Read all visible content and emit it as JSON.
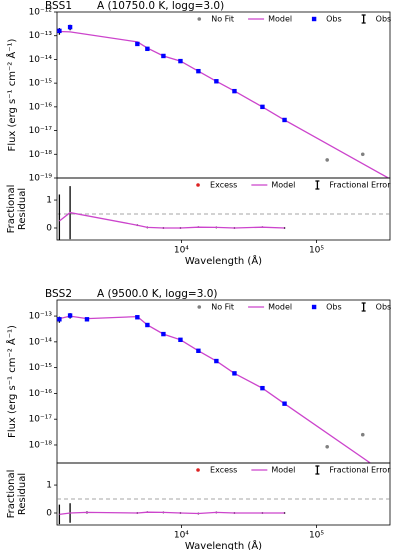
{
  "chart_data": [
    {
      "type": "sed",
      "title": "BSS1",
      "subtitle": "A (10750.0 K, logg=3.0)",
      "ylabel": "Flux (erg s⁻¹ cm⁻² Å⁻¹)",
      "xscale": "log",
      "yscale": "log",
      "xlim": [
        1200,
        350000
      ],
      "ylim": [
        1e-19,
        1e-12
      ],
      "yticks": [
        {
          "value": 1e-12,
          "label": "10⁻¹²"
        },
        {
          "value": 1e-13,
          "label": "10⁻¹³"
        },
        {
          "value": 1e-14,
          "label": "10⁻¹⁴"
        },
        {
          "value": 1e-15,
          "label": "10⁻¹⁵"
        },
        {
          "value": 1e-16,
          "label": "10⁻¹⁶"
        },
        {
          "value": 1e-17,
          "label": "10⁻¹⁷"
        },
        {
          "value": 1e-18,
          "label": "10⁻¹⁸"
        },
        {
          "value": 1e-19,
          "label": "10⁻¹⁹"
        }
      ],
      "legend": "upper right",
      "series": [
        {
          "name": "No Fit",
          "kind": "scatter",
          "color": "#808080",
          "x": [
            120000,
            220000
          ],
          "values": [
            5.8e-19,
            1e-18
          ]
        },
        {
          "name": "Model",
          "kind": "line",
          "color": "#cc44cc",
          "x": [
            1200,
            1250,
            1500,
            4720,
            5600,
            7360,
            9840,
            13360,
            18150,
            24700,
            39800,
            58000,
            340000
          ],
          "values": [
            1.5e-13,
            1.5e-13,
            1.45e-13,
            5.5e-14,
            3e-14,
            1.4e-14,
            8.5e-15,
            3.2e-15,
            1.2e-15,
            4.6e-16,
            1e-16,
            2.8e-17,
            1e-19
          ]
        },
        {
          "name": "Obs",
          "kind": "square",
          "color": "#0000ff",
          "x": [
            1250,
            1500,
            4720,
            5600,
            7360,
            9840,
            13360,
            18150,
            24700,
            39800,
            58000
          ],
          "values": [
            1.6e-13,
            2.3e-13,
            4.5e-14,
            2.8e-14,
            1.4e-14,
            8.5e-15,
            3.2e-15,
            1.2e-15,
            4.6e-16,
            1e-16,
            2.8e-17
          ],
          "errors": [
            5e-14,
            6e-14,
            2e-15,
            1e-15,
            4e-16,
            3e-16,
            1e-16,
            4e-17,
            1.5e-17,
            3e-18,
            1e-18
          ],
          "error_label": "Obs",
          "error_color": "#000000"
        }
      ]
    },
    {
      "type": "residual",
      "ylabel": [
        "Fractional",
        "Residual"
      ],
      "xlabel": "Wavelength (Å)",
      "xscale": "log",
      "yscale": "linear",
      "xlim": [
        1200,
        350000
      ],
      "ylim": [
        -0.43,
        1.79
      ],
      "yticks": [
        0,
        1
      ],
      "xticks": [
        {
          "value": 10000,
          "label": "10⁴"
        },
        {
          "value": 100000,
          "label": "10⁵"
        }
      ],
      "reference_line": 0.5,
      "legend": "upper right",
      "series": [
        {
          "name": "Excess",
          "kind": "scatter",
          "color": "#dd2222",
          "x": [],
          "values": []
        },
        {
          "name": "Model",
          "kind": "line",
          "color": "#cc44cc",
          "x": [
            1250,
            1500,
            4720,
            5600,
            7360,
            9840,
            13360,
            18150,
            24700,
            39800,
            58000
          ],
          "values": [
            0.25,
            0.55,
            0.1,
            0.02,
            0.0,
            0.0,
            0.03,
            0.02,
            0.0,
            0.03,
            0.0
          ],
          "errors": [
            0.95,
            0.95,
            0.03,
            0.03,
            0.03,
            0.03,
            0.03,
            0.03,
            0.03,
            0.03,
            0.03
          ],
          "error_label": "Fractional Error",
          "error_color": "#000000"
        }
      ]
    },
    {
      "type": "sed",
      "title": "BSS2",
      "subtitle": "A (9500.0 K, logg=3.0)",
      "ylabel": "Flux (erg s⁻¹ cm⁻² Å⁻¹)",
      "xscale": "log",
      "yscale": "log",
      "xlim": [
        1200,
        350000
      ],
      "ylim": [
        2e-19,
        4.2e-13
      ],
      "yticks": [
        {
          "value": 1e-13,
          "label": "10⁻¹³"
        },
        {
          "value": 1e-14,
          "label": "10⁻¹⁴"
        },
        {
          "value": 1e-15,
          "label": "10⁻¹⁵"
        },
        {
          "value": 1e-16,
          "label": "10⁻¹⁶"
        },
        {
          "value": 1e-17,
          "label": "10⁻¹⁷"
        },
        {
          "value": 1e-18,
          "label": "10⁻¹⁸"
        }
      ],
      "legend": "upper right",
      "series": [
        {
          "name": "No Fit",
          "kind": "scatter",
          "color": "#808080",
          "x": [
            120000,
            220000
          ],
          "values": [
            8.5e-19,
            2.5e-18
          ]
        },
        {
          "name": "Model",
          "kind": "line",
          "color": "#cc44cc",
          "x": [
            1200,
            1250,
            1500,
            2000,
            4720,
            5600,
            7360,
            9840,
            13360,
            18150,
            24700,
            39800,
            58000,
            250000
          ],
          "values": [
            8e-14,
            8e-14,
            1e-13,
            8e-14,
            9.5e-14,
            4.5e-14,
            2e-14,
            1.2e-14,
            4.5e-15,
            1.8e-15,
            6e-16,
            1.6e-16,
            4e-17,
            2e-19
          ]
        },
        {
          "name": "Obs",
          "kind": "square",
          "color": "#0000ff",
          "x": [
            1250,
            1500,
            2000,
            4720,
            5600,
            7360,
            9840,
            13360,
            18150,
            24700,
            39800,
            58000
          ],
          "values": [
            7.5e-14,
            1.05e-13,
            7.5e-14,
            9e-14,
            4.5e-14,
            2e-14,
            1.2e-14,
            4.5e-15,
            1.8e-15,
            6e-16,
            1.6e-16,
            4e-17
          ],
          "errors": [
            2e-14,
            2.5e-14,
            5e-15,
            4e-15,
            2e-15,
            1e-15,
            5e-16,
            2e-16,
            8e-17,
            3e-17,
            8e-18,
            2e-18
          ],
          "error_label": "Obs",
          "error_color": "#000000"
        }
      ]
    },
    {
      "type": "residual",
      "ylabel": [
        "Fractional",
        "Residual"
      ],
      "xlabel": "Wavelength (Å)",
      "xscale": "log",
      "yscale": "linear",
      "xlim": [
        1200,
        350000
      ],
      "ylim": [
        -0.43,
        1.79
      ],
      "yticks": [
        0,
        1
      ],
      "xticks": [
        {
          "value": 10000,
          "label": "10⁴"
        },
        {
          "value": 100000,
          "label": "10⁵"
        }
      ],
      "reference_line": 0.5,
      "legend": "upper right",
      "series": [
        {
          "name": "Excess",
          "kind": "scatter",
          "color": "#dd2222",
          "x": [],
          "values": []
        },
        {
          "name": "Model",
          "kind": "line",
          "color": "#cc44cc",
          "x": [
            1250,
            1500,
            2000,
            4720,
            5600,
            7360,
            9840,
            13360,
            18150,
            24700,
            39800,
            58000
          ],
          "values": [
            -0.05,
            0.0,
            0.02,
            0.0,
            0.03,
            0.02,
            0.0,
            -0.02,
            0.02,
            0.0,
            0.0,
            0.0
          ],
          "errors": [
            0.35,
            0.35,
            0.04,
            0.03,
            0.03,
            0.03,
            0.03,
            0.03,
            0.03,
            0.03,
            0.03,
            0.03
          ],
          "error_label": "Fractional Error",
          "error_color": "#000000"
        }
      ]
    }
  ]
}
